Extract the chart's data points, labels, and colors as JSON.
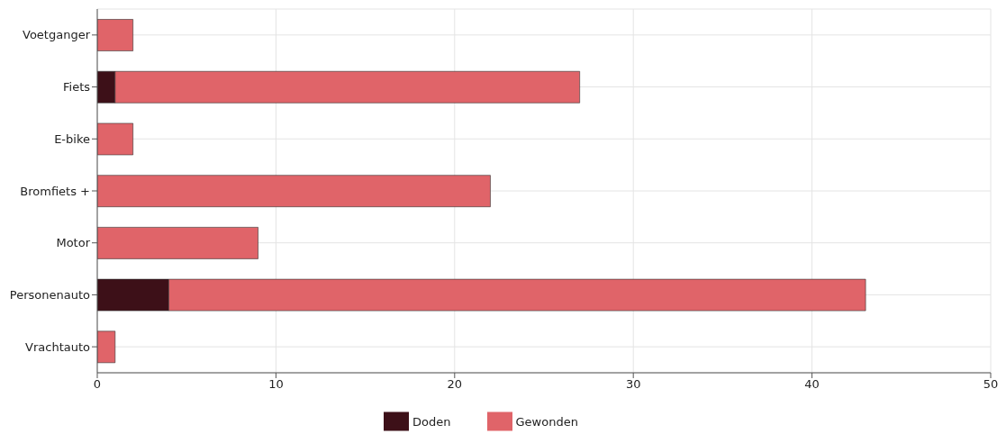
{
  "chart_data": {
    "type": "bar",
    "orientation": "horizontal",
    "stacked": true,
    "categories": [
      "Voetganger",
      "Fiets",
      "E-bike",
      "Bromfiets +",
      "Motor",
      "Personenauto",
      "Vrachtauto"
    ],
    "series": [
      {
        "name": "Doden",
        "color": "#3d1018",
        "values": [
          0,
          1,
          0,
          0,
          0,
          4,
          0
        ]
      },
      {
        "name": "Gewonden",
        "color": "#e06469",
        "values": [
          2,
          26,
          2,
          22,
          9,
          39,
          1
        ]
      }
    ],
    "xlim": [
      0,
      50
    ],
    "xticks": [
      0,
      10,
      20,
      30,
      40,
      50
    ],
    "grid": true,
    "legend": "bottom"
  }
}
